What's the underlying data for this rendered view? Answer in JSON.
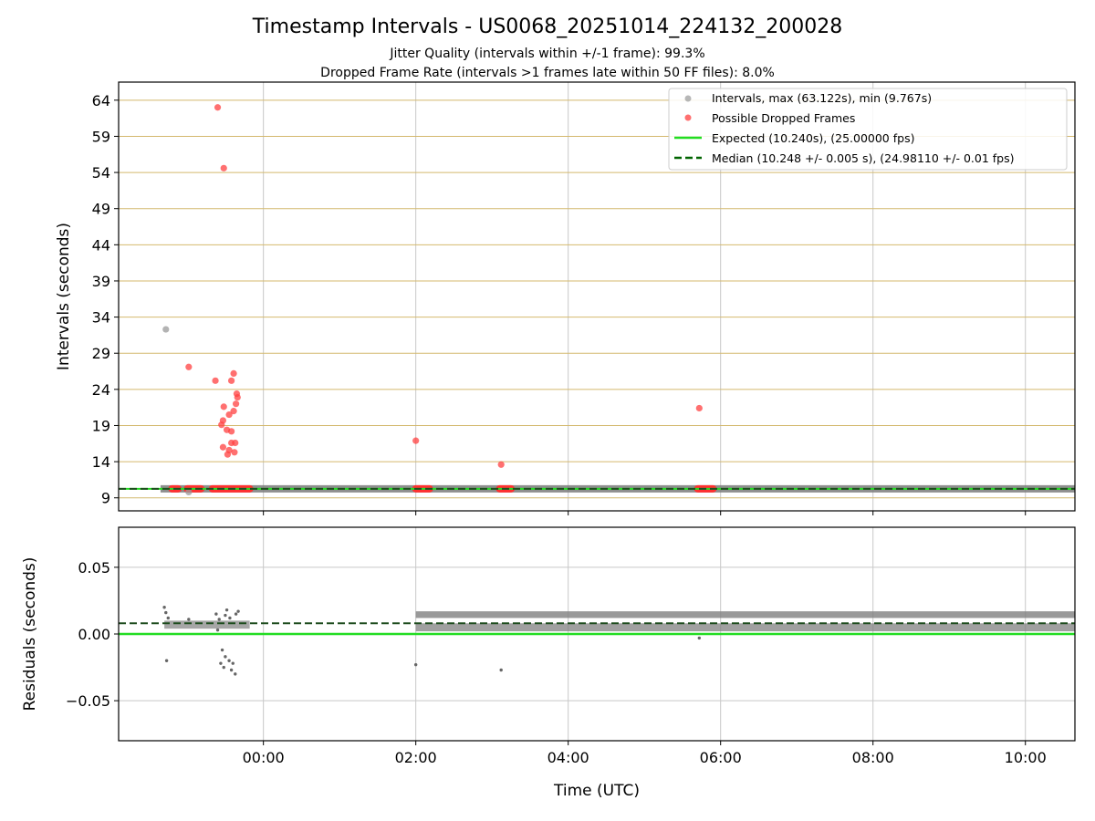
{
  "chart_data": {
    "type": "scatter",
    "title": "Timestamp Intervals - US0068_20251014_224132_200028",
    "subtitle_lines": [
      "Jitter Quality (intervals within +/-1 frame): 99.3%",
      "Dropped Frame Rate (intervals >1 frames late within 50 FF files): 8.0%"
    ],
    "xlabel": "Time (UTC)",
    "x_units": "hours relative to 00:00 UTC",
    "xlim": [
      -1.9,
      10.65
    ],
    "xticks": [
      0,
      2,
      4,
      6,
      8,
      10
    ],
    "xtick_labels": [
      "00:00",
      "02:00",
      "04:00",
      "06:00",
      "08:00",
      "10:00"
    ],
    "top_panel": {
      "ylabel": "Intervals (seconds)",
      "ylim": [
        7.2,
        66.5
      ],
      "yticks": [
        9,
        14,
        19,
        24,
        29,
        34,
        39,
        44,
        49,
        54,
        59,
        64
      ],
      "ytick_labels": [
        "9",
        "14",
        "19",
        "24",
        "29",
        "34",
        "39",
        "44",
        "49",
        "54",
        "59",
        "64"
      ],
      "hgrid_color": "#d4b96e",
      "vgrid_color": "#c8c8c8",
      "legend": {
        "position": "upper right",
        "entries": [
          {
            "label": "Intervals, max (63.122s), min (9.767s)",
            "kind": "marker",
            "color": "#999999"
          },
          {
            "label": "Possible Dropped Frames",
            "kind": "marker",
            "color": "#ff4040"
          },
          {
            "label": "Expected (10.240s), (25.00000 fps)",
            "kind": "line",
            "color": "#22dd22"
          },
          {
            "label": "Median (10.248 +/- 0.005 s), (24.98110 +/- 0.01 fps)",
            "kind": "dashed",
            "color": "#006400"
          }
        ]
      },
      "expected_interval": 10.24,
      "median_interval": 10.248,
      "interval_band": {
        "start": -1.35,
        "end": 10.65,
        "value": 10.25
      },
      "interval_outliers": [
        {
          "x": -1.28,
          "y": 32.3
        },
        {
          "x": -0.98,
          "y": 9.8
        }
      ],
      "dropped_frames": [
        {
          "x": -0.6,
          "y": 63.0
        },
        {
          "x": -0.52,
          "y": 54.6
        },
        {
          "x": -0.98,
          "y": 27.1
        },
        {
          "x": -0.63,
          "y": 25.2
        },
        {
          "x": -0.42,
          "y": 25.2
        },
        {
          "x": -0.39,
          "y": 26.2
        },
        {
          "x": -0.35,
          "y": 23.4
        },
        {
          "x": -0.34,
          "y": 22.9
        },
        {
          "x": -0.36,
          "y": 22.0
        },
        {
          "x": -0.52,
          "y": 21.6
        },
        {
          "x": -0.39,
          "y": 21.0
        },
        {
          "x": -0.45,
          "y": 20.5
        },
        {
          "x": -0.53,
          "y": 19.7
        },
        {
          "x": -0.55,
          "y": 19.1
        },
        {
          "x": -0.48,
          "y": 18.4
        },
        {
          "x": -0.42,
          "y": 18.2
        },
        {
          "x": -0.42,
          "y": 16.6
        },
        {
          "x": -0.37,
          "y": 16.6
        },
        {
          "x": -0.53,
          "y": 16.0
        },
        {
          "x": -0.45,
          "y": 15.6
        },
        {
          "x": -0.38,
          "y": 15.3
        },
        {
          "x": -0.47,
          "y": 15.0
        },
        {
          "x": 2.0,
          "y": 16.9
        },
        {
          "x": 3.12,
          "y": 13.6
        },
        {
          "x": 5.72,
          "y": 21.4
        }
      ],
      "dropped_frame_runs": [
        {
          "start": -1.2,
          "end": -1.12,
          "value": 10.25
        },
        {
          "start": -1.0,
          "end": -0.82,
          "value": 10.25
        },
        {
          "start": -0.67,
          "end": -0.18,
          "value": 10.25
        },
        {
          "start": 2.0,
          "end": 2.18,
          "value": 10.25
        },
        {
          "start": 3.1,
          "end": 3.25,
          "value": 10.25
        },
        {
          "start": 5.7,
          "end": 5.9,
          "value": 10.25
        }
      ]
    },
    "bottom_panel": {
      "ylabel": "Residuals (seconds)",
      "ylim": [
        -0.08,
        0.08
      ],
      "yticks": [
        -0.05,
        0.0,
        0.05
      ],
      "ytick_labels": [
        "−0.05",
        "0.00",
        "0.05"
      ],
      "expected_residual": 0.0,
      "median_residual": 0.008,
      "residual_band_high": {
        "start": 2.0,
        "end": 10.65,
        "min": 0.012,
        "max": 0.017
      },
      "residual_band_low": {
        "start": 2.0,
        "end": 10.65,
        "min": 0.002,
        "max": 0.008
      },
      "early_band": {
        "start": -1.3,
        "end": -0.18,
        "min": 0.004,
        "max": 0.01
      },
      "residual_points": [
        {
          "x": -1.3,
          "y": 0.02
        },
        {
          "x": -1.28,
          "y": 0.016
        },
        {
          "x": -1.25,
          "y": 0.012
        },
        {
          "x": -1.27,
          "y": -0.02
        },
        {
          "x": -0.98,
          "y": 0.011
        },
        {
          "x": -0.62,
          "y": 0.015
        },
        {
          "x": -0.6,
          "y": 0.003
        },
        {
          "x": -0.58,
          "y": 0.011
        },
        {
          "x": -0.54,
          "y": -0.012
        },
        {
          "x": -0.56,
          "y": -0.022
        },
        {
          "x": -0.52,
          "y": -0.025
        },
        {
          "x": -0.5,
          "y": -0.017
        },
        {
          "x": -0.45,
          "y": -0.02
        },
        {
          "x": -0.42,
          "y": -0.027
        },
        {
          "x": -0.4,
          "y": -0.022
        },
        {
          "x": -0.37,
          "y": -0.03
        },
        {
          "x": -0.36,
          "y": 0.015
        },
        {
          "x": -0.33,
          "y": 0.017
        },
        {
          "x": -0.48,
          "y": 0.018
        },
        {
          "x": -0.5,
          "y": 0.014
        },
        {
          "x": -0.44,
          "y": 0.012
        },
        {
          "x": 2.0,
          "y": -0.023
        },
        {
          "x": 3.12,
          "y": -0.027
        },
        {
          "x": 5.72,
          "y": -0.003
        }
      ]
    }
  }
}
